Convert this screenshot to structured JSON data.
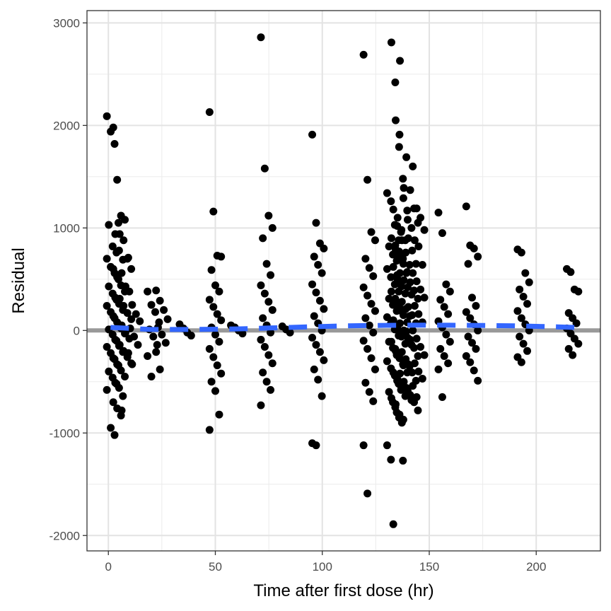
{
  "chart_data": {
    "type": "scatter",
    "xlabel": "Time after first dose (hr)",
    "ylabel": "Residual",
    "xlim": [
      -10,
      230
    ],
    "ylim": [
      -2150,
      3120
    ],
    "x_ticks": [
      0,
      50,
      100,
      150,
      200
    ],
    "x_tick_labels": [
      "0",
      "50",
      "100",
      "150",
      "200"
    ],
    "y_ticks": [
      -2000,
      -1000,
      0,
      1000,
      2000,
      3000
    ],
    "y_tick_labels": [
      "-2000",
      "-1000",
      "0",
      "1000",
      "2000",
      "3000"
    ],
    "grid": true,
    "legend": "none",
    "reference_line": {
      "y": 0,
      "color": "#999999"
    },
    "smooth_line": {
      "color": "#3366ff",
      "style": "dashed",
      "points": [
        [
          1,
          30
        ],
        [
          20,
          10
        ],
        [
          40,
          10
        ],
        [
          60,
          15
        ],
        [
          85,
          30
        ],
        [
          110,
          45
        ],
        [
          130,
          50
        ],
        [
          150,
          52
        ],
        [
          170,
          50
        ],
        [
          190,
          45
        ],
        [
          210,
          35
        ],
        [
          218,
          30
        ]
      ]
    },
    "clusters": [
      {
        "x": 2,
        "values": [
          2090,
          1940,
          1820,
          1050,
          1030,
          820,
          760,
          700,
          620,
          560,
          500,
          430,
          360,
          300,
          240,
          180,
          120,
          60,
          10,
          -40,
          -100,
          -160,
          -220,
          -280,
          -340,
          -400,
          -460,
          -520,
          -580,
          -950,
          -1020
        ]
      },
      {
        "x": 5,
        "values": [
          1980,
          1470,
          1120,
          1080,
          940,
          780,
          690,
          600,
          520,
          440,
          380,
          320,
          260,
          200,
          140,
          80,
          20,
          -30,
          -90,
          -150,
          -210,
          -270,
          -330,
          -390,
          -450,
          -510,
          -560,
          -640,
          -700,
          -760,
          -830
        ]
      },
      {
        "x": 8,
        "values": [
          940,
          880,
          700,
          600,
          560,
          430,
          380,
          310,
          240,
          170,
          110,
          50,
          -20,
          -80,
          -140,
          -200,
          -260,
          -320,
          -780
        ]
      },
      {
        "x": 12,
        "values": [
          710,
          250,
          160,
          90,
          20,
          -60,
          -140,
          -220,
          -330
        ]
      },
      {
        "x": 21,
        "values": [
          380,
          250,
          180,
          80,
          10,
          -60,
          -140,
          -250,
          -450
        ]
      },
      {
        "x": 25,
        "values": [
          390,
          290,
          200,
          110,
          30,
          -40,
          -120,
          -210,
          -380
        ]
      },
      {
        "x": 36,
        "values": [
          60,
          20,
          -20,
          -50
        ]
      },
      {
        "x": 50,
        "values": [
          2130,
          1160,
          730,
          720,
          590,
          440,
          380,
          300,
          230,
          160,
          100,
          30,
          -40,
          -110,
          -180,
          -260,
          -340,
          -420,
          -500,
          -590,
          -820,
          -970
        ]
      },
      {
        "x": 60,
        "values": [
          50,
          30,
          0,
          -30
        ]
      },
      {
        "x": 74,
        "values": [
          2860,
          1580,
          1120,
          1000,
          900,
          650,
          540,
          440,
          360,
          280,
          200,
          120,
          50,
          -20,
          -90,
          -160,
          -240,
          -320,
          -410,
          -500,
          -580,
          -730
        ]
      },
      {
        "x": 84,
        "values": [
          40,
          10,
          -20
        ]
      },
      {
        "x": 98,
        "values": [
          1910,
          1050,
          850,
          800,
          720,
          640,
          560,
          450,
          370,
          290,
          210,
          140,
          70,
          0,
          -70,
          -140,
          -210,
          -290,
          -380,
          -480,
          -640,
          -1100,
          -1120
        ]
      },
      {
        "x": 122,
        "values": [
          2690,
          1470,
          960,
          880,
          700,
          610,
          530,
          420,
          340,
          260,
          190,
          120,
          50,
          -20,
          -100,
          -180,
          -270,
          -380,
          -510,
          -600,
          -690,
          -1120,
          -1590
        ]
      },
      {
        "x": 133,
        "values": [
          1340,
          1260,
          1030,
          880,
          820,
          740,
          680,
          600,
          520,
          450,
          380,
          310,
          250,
          190,
          130,
          70,
          10,
          -50,
          -110,
          -170,
          -240,
          -300,
          -370,
          -440,
          -520,
          -600,
          -700,
          -800,
          -1120,
          -1260
        ]
      },
      {
        "x": 135,
        "values": [
          2810,
          2420,
          1790,
          1480,
          1180,
          1020,
          960,
          900,
          830,
          770,
          700,
          620,
          540,
          460,
          380,
          310,
          240,
          170,
          100,
          30,
          -40,
          -110,
          -180,
          -250,
          -330,
          -410,
          -490,
          -580,
          -660,
          -750,
          -850,
          -1270,
          -1890
        ]
      },
      {
        "x": 137,
        "values": [
          2050,
          1910,
          1290,
          1170,
          1100,
          980,
          880,
          790,
          720,
          650,
          570,
          500,
          430,
          360,
          290,
          220,
          150,
          80,
          10,
          -60,
          -130,
          -200,
          -270,
          -340,
          -410,
          -480,
          -560,
          -640,
          -720,
          -820,
          -870
        ]
      },
      {
        "x": 139,
        "values": [
          2630,
          1390,
          1080,
          1000,
          880,
          760,
          640,
          560,
          490,
          420,
          350,
          280,
          210,
          140,
          70,
          0,
          -70,
          -140,
          -210,
          -280,
          -350,
          -420,
          -500,
          -590,
          -680,
          -900
        ]
      },
      {
        "x": 142,
        "values": [
          1690,
          1370,
          1190,
          1050,
          900,
          780,
          650,
          560,
          470,
          390,
          310,
          230,
          150,
          70,
          -10,
          -90,
          -170,
          -250,
          -330,
          -410,
          -490,
          -560,
          -630,
          -700,
          -780
        ]
      },
      {
        "x": 145,
        "values": [
          1600,
          1190,
          1100,
          980,
          880,
          820,
          640,
          560,
          480,
          400,
          320,
          240,
          160,
          80,
          0,
          -80,
          -160,
          -240,
          -320,
          -400,
          -470,
          -540,
          -650
        ]
      },
      {
        "x": 157,
        "values": [
          1150,
          950,
          450,
          380,
          300,
          230,
          160,
          90,
          30,
          -40,
          -110,
          -180,
          -250,
          -320,
          -380,
          -650
        ]
      },
      {
        "x": 170,
        "values": [
          1210,
          830,
          800,
          720,
          650,
          320,
          240,
          180,
          120,
          60,
          0,
          -60,
          -120,
          -180,
          -250,
          -310,
          -390,
          -490
        ]
      },
      {
        "x": 194,
        "values": [
          790,
          760,
          560,
          470,
          400,
          330,
          260,
          190,
          120,
          60,
          0,
          -60,
          -130,
          -200,
          -260,
          -310
        ]
      },
      {
        "x": 217,
        "values": [
          600,
          570,
          400,
          380,
          170,
          120,
          70,
          20,
          -30,
          -80,
          -130,
          -180,
          -240
        ]
      }
    ]
  }
}
